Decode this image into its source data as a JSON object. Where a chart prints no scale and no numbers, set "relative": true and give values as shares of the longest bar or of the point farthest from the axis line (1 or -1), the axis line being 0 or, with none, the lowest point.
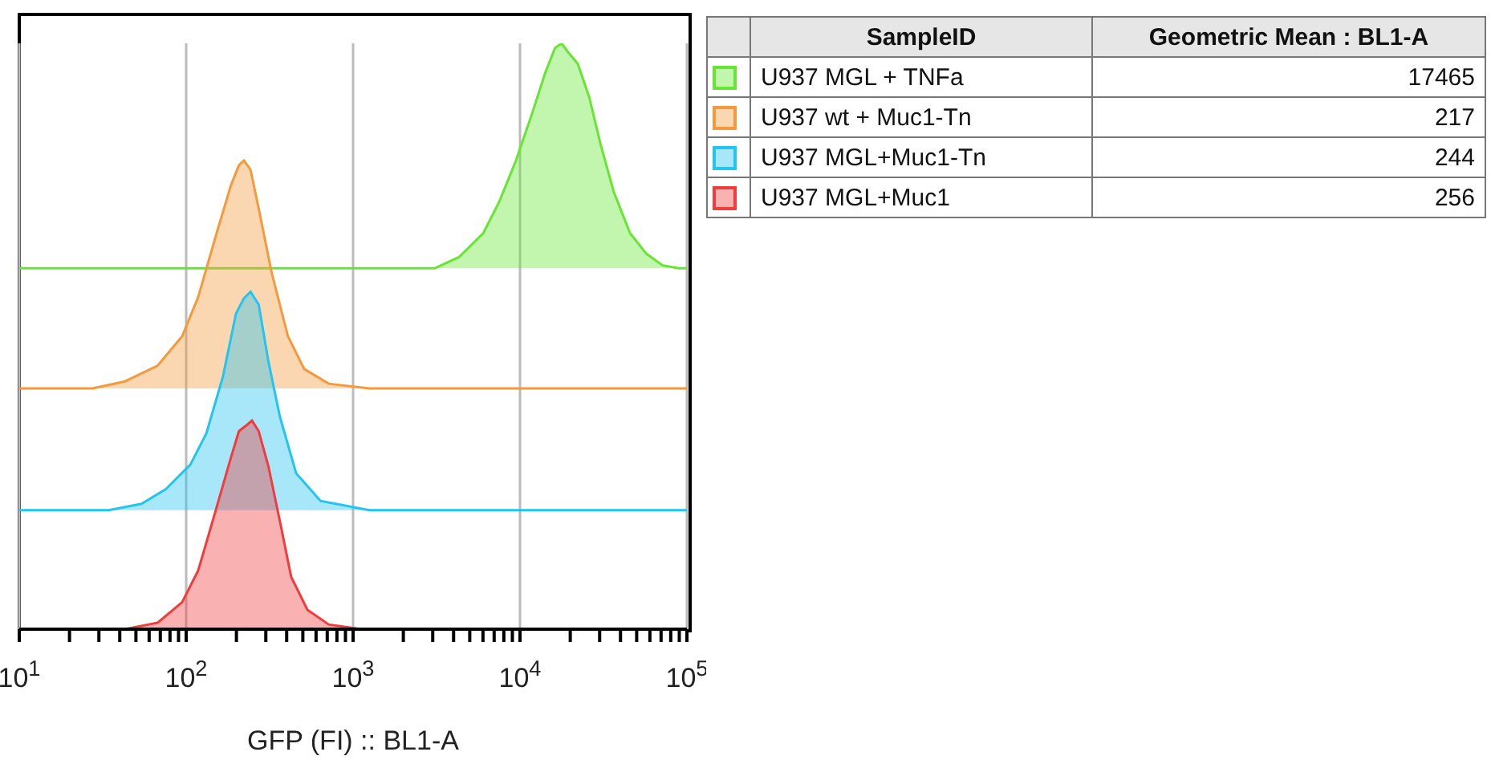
{
  "chart_data": [
    {
      "type": "area",
      "relative": true,
      "xlabel": "GFP (FI) :: BL1-A",
      "log": "x",
      "xlim": [
        10,
        100000
      ],
      "grid": "x",
      "xticks": [
        {
          "value": 10,
          "label": "10$^{1}$"
        },
        {
          "value": 20,
          "label": null
        },
        {
          "value": 30,
          "label": null
        },
        {
          "value": 40,
          "label": null
        },
        {
          "value": 50,
          "label": null
        },
        {
          "value": 60,
          "label": null
        },
        {
          "value": 70,
          "label": null
        },
        {
          "value": 80,
          "label": null
        },
        {
          "value": 90,
          "label": null
        },
        {
          "value": 100,
          "label": "10$^{2}$"
        },
        {
          "value": 200,
          "label": null
        },
        {
          "value": 300,
          "label": null
        },
        {
          "value": 400,
          "label": null
        },
        {
          "value": 500,
          "label": null
        },
        {
          "value": 600,
          "label": null
        },
        {
          "value": 700,
          "label": null
        },
        {
          "value": 800,
          "label": null
        },
        {
          "value": 900,
          "label": null
        },
        {
          "value": 1000,
          "label": "10$^{3}$"
        },
        {
          "value": 2000,
          "label": null
        },
        {
          "value": 3000,
          "label": null
        },
        {
          "value": 4000,
          "label": null
        },
        {
          "value": 5000,
          "label": null
        },
        {
          "value": 6000,
          "label": null
        },
        {
          "value": 7000,
          "label": null
        },
        {
          "value": 8000,
          "label": null
        },
        {
          "value": 9000,
          "label": null
        },
        {
          "value": 10000,
          "label": "10$^{4}$"
        },
        {
          "value": 20000,
          "label": null
        },
        {
          "value": 30000,
          "label": null
        },
        {
          "value": 40000,
          "label": null
        },
        {
          "value": 50000,
          "label": null
        },
        {
          "value": 60000,
          "label": null
        },
        {
          "value": 70000,
          "label": null
        },
        {
          "value": 80000,
          "label": null
        },
        {
          "value": 90000,
          "label": null
        },
        {
          "value": 100000,
          "label": "10$^{5}$"
        }
      ],
      "series": [
        {
          "color": "#66e633",
          "x": [
            10,
            3076,
            4305,
            6030,
            7550,
            9460,
            11840,
            14170,
            16200,
            17740,
            19410,
            22200,
            25990,
            30430,
            36400,
            45600,
            57100,
            71500,
            89400,
            100000
          ],
          "values": [
            0.616,
            0.616,
            0.635,
            0.676,
            0.731,
            0.8,
            0.881,
            0.95,
            0.992,
            1,
            0.985,
            0.965,
            0.908,
            0.827,
            0.747,
            0.676,
            0.641,
            0.621,
            0.616,
            0.616
          ]
        },
        {
          "color": "#f59a3c",
          "x": [
            10,
            27.5,
            43,
            67.5,
            94.6,
            118,
            148,
            185,
            207,
            222,
            243,
            272,
            325,
            407,
            510,
            714,
            1253,
            100000
          ],
          "values": [
            0.411,
            0.411,
            0.423,
            0.45,
            0.5,
            0.567,
            0.664,
            0.757,
            0.792,
            0.8,
            0.784,
            0.718,
            0.609,
            0.5,
            0.444,
            0.419,
            0.411,
            0.411
          ]
        },
        {
          "color": "#22c4f0",
          "x": [
            10,
            34.4,
            54,
            75.5,
            106,
            132,
            166,
            199,
            222,
            243,
            272,
            311,
            364,
            456,
            638,
            1253,
            100000
          ],
          "values": [
            0.203,
            0.203,
            0.214,
            0.239,
            0.281,
            0.334,
            0.431,
            0.539,
            0.565,
            0.576,
            0.554,
            0.457,
            0.363,
            0.266,
            0.219,
            0.203,
            0.203
          ]
        },
        {
          "color": "#f03c3c",
          "x": [
            10,
            43,
            67.5,
            94.6,
            118,
            148,
            185,
            207,
            232,
            248,
            272,
            311,
            364,
            426,
            533,
            714,
            1119,
            100000
          ],
          "values": [
            0,
            0,
            0.011,
            0.046,
            0.1,
            0.196,
            0.292,
            0.338,
            0.349,
            0.356,
            0.338,
            0.278,
            0.185,
            0.089,
            0.033,
            0.008,
            0,
            0
          ]
        }
      ]
    },
    {
      "type": "other",
      "xlabel": "SampleID",
      "ylabel": "Geometric Mean : BL1-A",
      "data_labels": true,
      "categories": [
        "U937 MGL + TNFa",
        "U937 wt + Muc1-Tn",
        "U937 MGL+Muc1-Tn",
        "U937 MGL+Muc1"
      ],
      "values": [
        17465,
        217,
        244,
        256
      ],
      "colors": [
        "#66e633",
        "#f59a3c",
        "#22c4f0",
        "#f03c3c"
      ]
    }
  ]
}
